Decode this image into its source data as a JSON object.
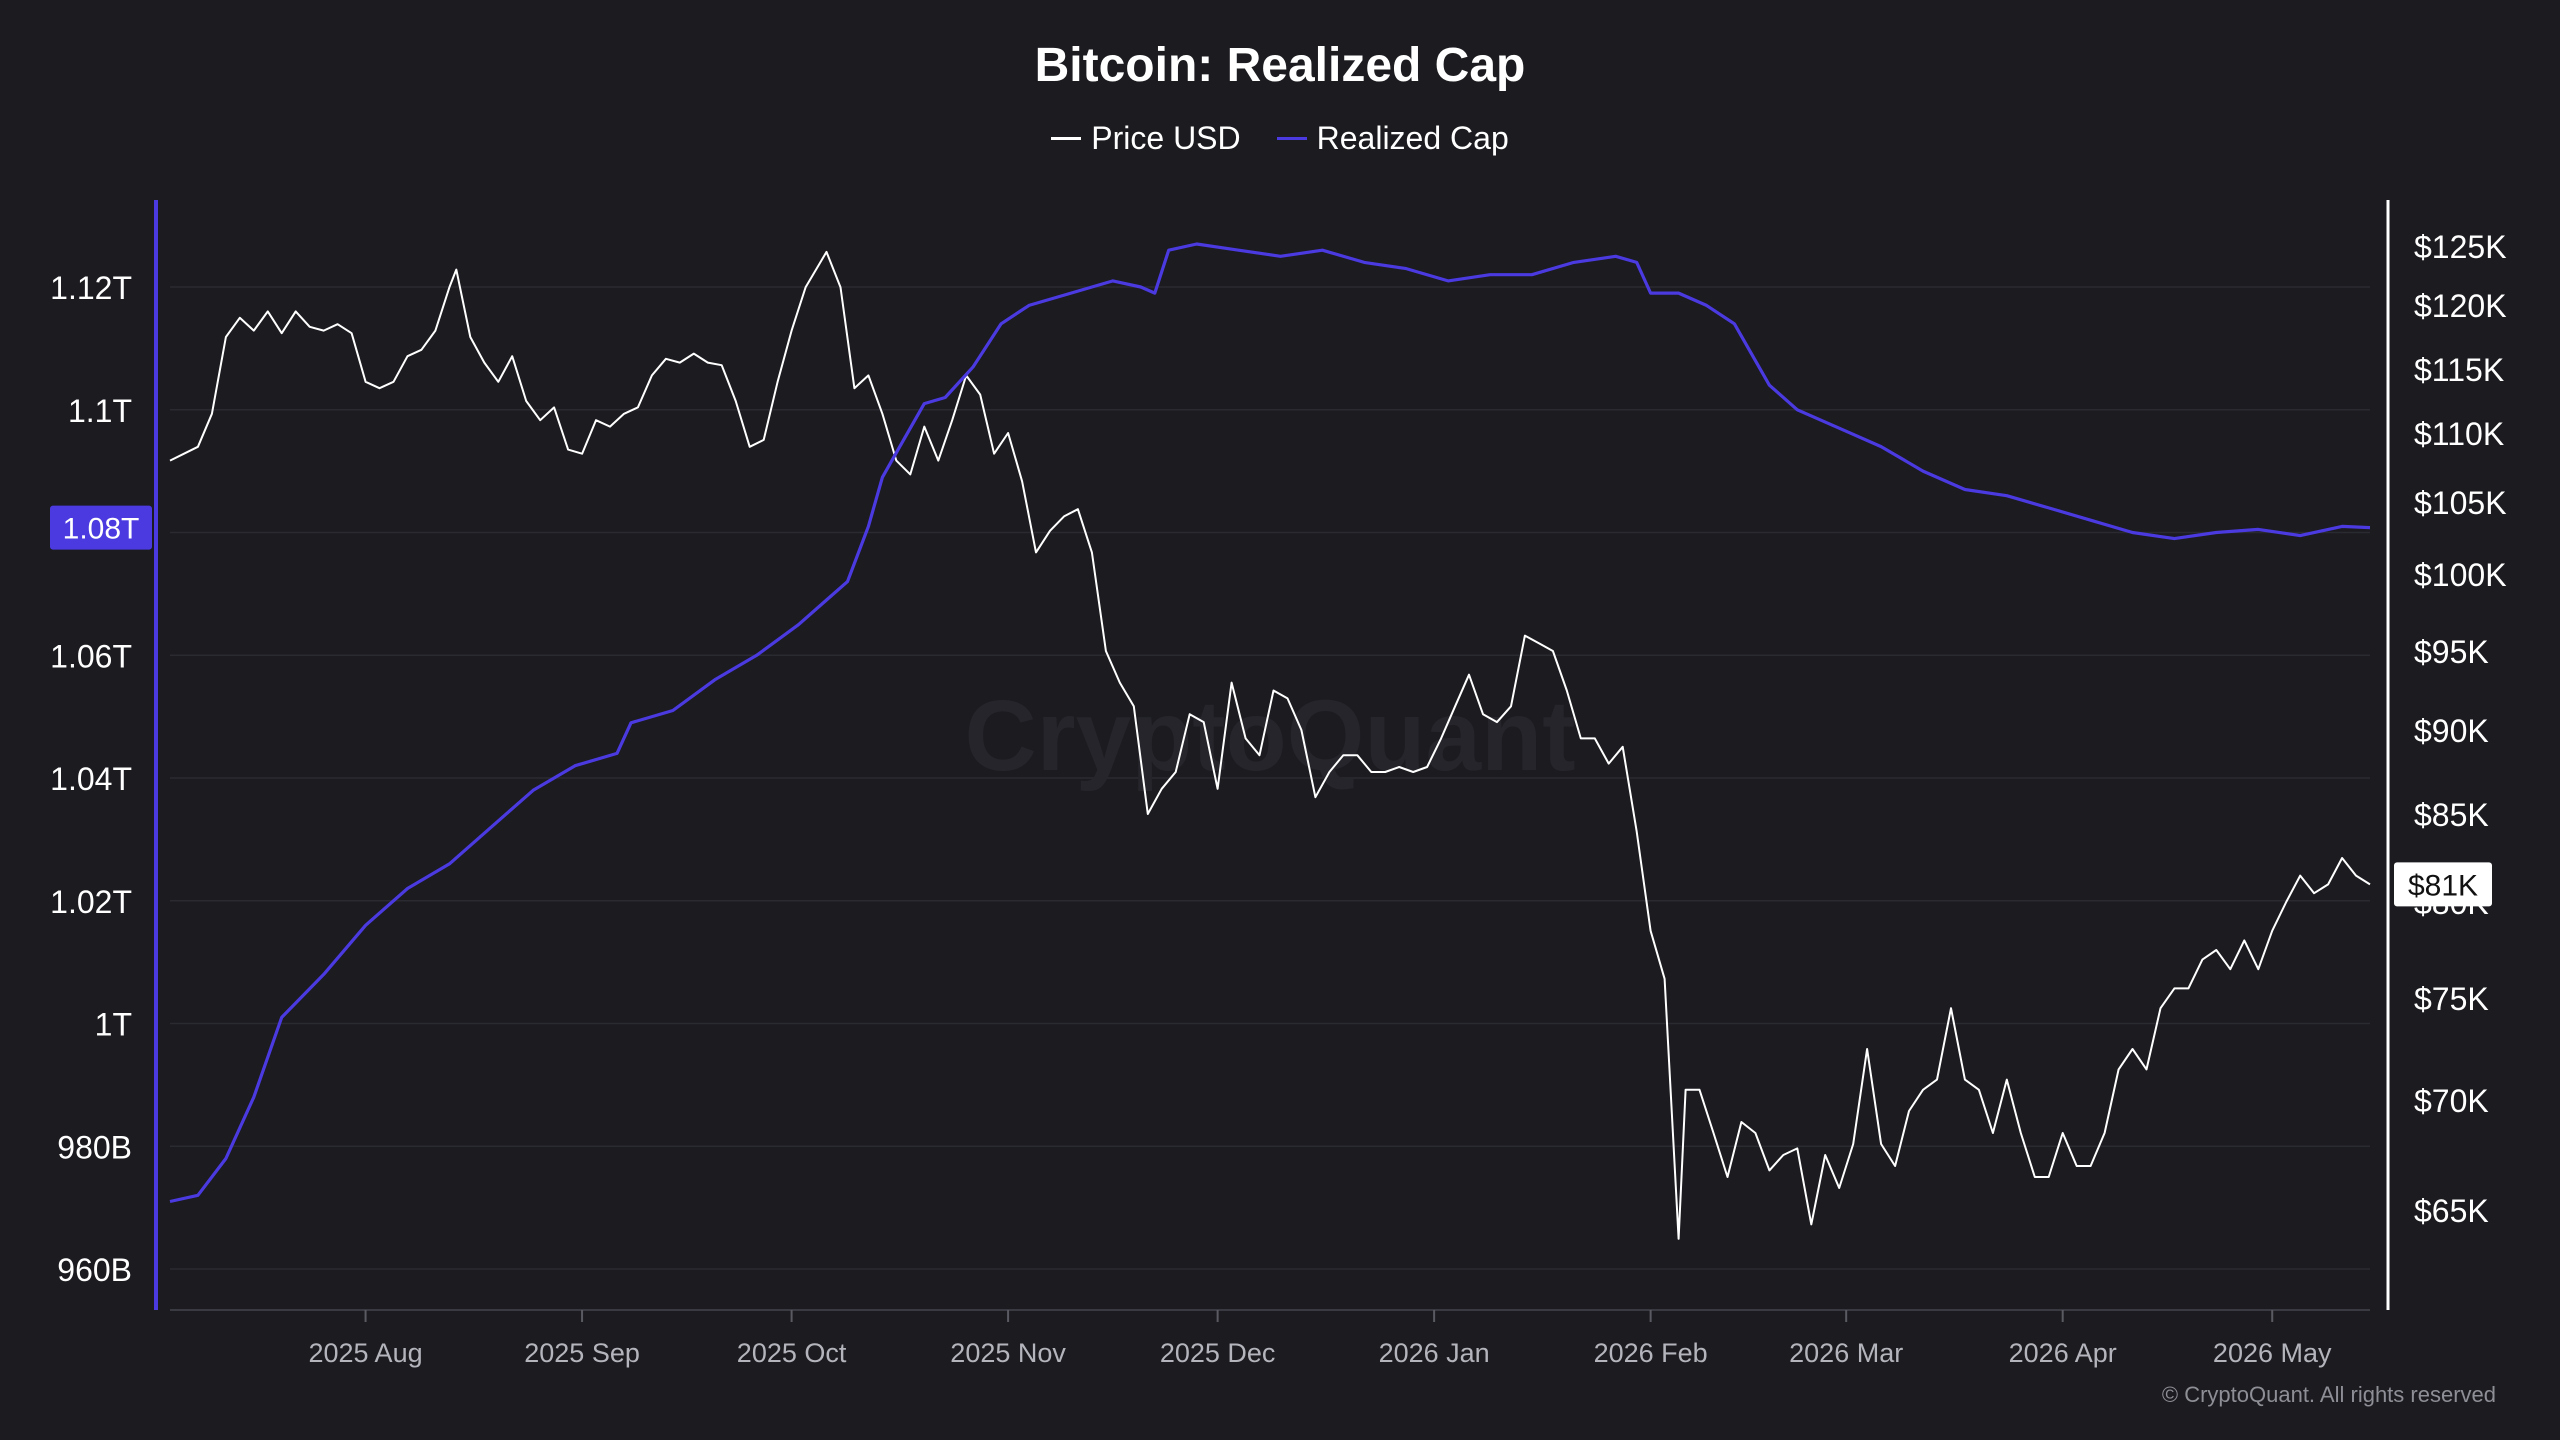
{
  "chart_data": {
    "type": "line",
    "title": "Bitcoin: Realized Cap",
    "watermark": "CryptoQuant",
    "copyright": "© CryptoQuant. All rights reserved",
    "legend_placement": "top-center",
    "grid": true,
    "x_ticks": [
      "2025 Aug",
      "2025 Sep",
      "2025 Oct",
      "2025 Nov",
      "2025 Dec",
      "2026 Jan",
      "2026 Feb",
      "2026 Mar",
      "2026 Apr",
      "2026 May"
    ],
    "x_range": [
      "2025-07-04",
      "2026-05-15"
    ],
    "y_left": {
      "ticks": [
        960,
        980,
        1000,
        1020,
        1040,
        1060,
        1080,
        1100,
        1120
      ],
      "tick_labels": [
        "960B",
        "980B",
        "1T",
        "1.02T",
        "1.04T",
        "1.06T",
        "1.08T",
        "1.1T",
        "1.12T"
      ],
      "range": [
        955,
        1133
      ],
      "current_label": "1.08T",
      "current_value": 1080.8
    },
    "y_right": {
      "ticks": [
        65,
        70,
        75,
        80,
        85,
        90,
        95,
        100,
        105,
        110,
        115,
        120,
        125
      ],
      "tick_labels": [
        "$65K",
        "$70K",
        "$75K",
        "$80K",
        "$85K",
        "$90K",
        "$95K",
        "$100K",
        "$105K",
        "$110K",
        "$115K",
        "$120K",
        "$125K"
      ],
      "current_label": "$81K",
      "current_value": 81
    },
    "series": [
      {
        "name": "Price USD",
        "color": "#ffffff",
        "axis": "right",
        "unit": "$K",
        "points": [
          [
            "2025-07-04",
            108.0
          ],
          [
            "2025-07-06",
            108.5
          ],
          [
            "2025-07-08",
            109.0
          ],
          [
            "2025-07-10",
            111.5
          ],
          [
            "2025-07-12",
            117.5
          ],
          [
            "2025-07-14",
            119.0
          ],
          [
            "2025-07-16",
            118.0
          ],
          [
            "2025-07-18",
            119.5
          ],
          [
            "2025-07-20",
            117.8
          ],
          [
            "2025-07-22",
            119.5
          ],
          [
            "2025-07-24",
            118.3
          ],
          [
            "2025-07-26",
            118.0
          ],
          [
            "2025-07-28",
            118.5
          ],
          [
            "2025-07-30",
            117.8
          ],
          [
            "2025-08-01",
            114.0
          ],
          [
            "2025-08-03",
            113.5
          ],
          [
            "2025-08-05",
            114.0
          ],
          [
            "2025-08-07",
            116.0
          ],
          [
            "2025-08-09",
            116.5
          ],
          [
            "2025-08-11",
            118.0
          ],
          [
            "2025-08-13",
            121.5
          ],
          [
            "2025-08-14",
            123.0
          ],
          [
            "2025-08-16",
            117.5
          ],
          [
            "2025-08-18",
            115.5
          ],
          [
            "2025-08-20",
            114.0
          ],
          [
            "2025-08-22",
            116.0
          ],
          [
            "2025-08-24",
            112.5
          ],
          [
            "2025-08-26",
            111.0
          ],
          [
            "2025-08-28",
            112.0
          ],
          [
            "2025-08-30",
            108.8
          ],
          [
            "2025-09-01",
            108.5
          ],
          [
            "2025-09-03",
            111.0
          ],
          [
            "2025-09-05",
            110.5
          ],
          [
            "2025-09-07",
            111.5
          ],
          [
            "2025-09-09",
            112.0
          ],
          [
            "2025-09-11",
            114.5
          ],
          [
            "2025-09-13",
            115.8
          ],
          [
            "2025-09-15",
            115.5
          ],
          [
            "2025-09-17",
            116.2
          ],
          [
            "2025-09-19",
            115.5
          ],
          [
            "2025-09-21",
            115.3
          ],
          [
            "2025-09-23",
            112.5
          ],
          [
            "2025-09-25",
            109.0
          ],
          [
            "2025-09-27",
            109.5
          ],
          [
            "2025-09-29",
            114.0
          ],
          [
            "2025-10-01",
            118.0
          ],
          [
            "2025-10-03",
            121.5
          ],
          [
            "2025-10-05",
            123.5
          ],
          [
            "2025-10-06",
            124.5
          ],
          [
            "2025-10-08",
            121.5
          ],
          [
            "2025-10-10",
            113.5
          ],
          [
            "2025-10-12",
            114.5
          ],
          [
            "2025-10-14",
            111.5
          ],
          [
            "2025-10-16",
            108.0
          ],
          [
            "2025-10-18",
            107.0
          ],
          [
            "2025-10-20",
            110.5
          ],
          [
            "2025-10-22",
            108.0
          ],
          [
            "2025-10-24",
            111.0
          ],
          [
            "2025-10-26",
            114.5
          ],
          [
            "2025-10-28",
            113.0
          ],
          [
            "2025-10-30",
            108.5
          ],
          [
            "2025-11-01",
            110.0
          ],
          [
            "2025-11-03",
            106.5
          ],
          [
            "2025-11-05",
            101.5
          ],
          [
            "2025-11-07",
            103.0
          ],
          [
            "2025-11-09",
            104.0
          ],
          [
            "2025-11-11",
            104.5
          ],
          [
            "2025-11-13",
            101.5
          ],
          [
            "2025-11-15",
            95.0
          ],
          [
            "2025-11-17",
            93.0
          ],
          [
            "2025-11-19",
            91.5
          ],
          [
            "2025-11-21",
            85.0
          ],
          [
            "2025-11-23",
            86.5
          ],
          [
            "2025-11-25",
            87.5
          ],
          [
            "2025-11-27",
            91.0
          ],
          [
            "2025-11-29",
            90.5
          ],
          [
            "2025-12-01",
            86.5
          ],
          [
            "2025-12-03",
            93.0
          ],
          [
            "2025-12-05",
            89.5
          ],
          [
            "2025-12-07",
            88.5
          ],
          [
            "2025-12-09",
            92.5
          ],
          [
            "2025-12-11",
            92.0
          ],
          [
            "2025-12-13",
            90.0
          ],
          [
            "2025-12-15",
            86.0
          ],
          [
            "2025-12-17",
            87.5
          ],
          [
            "2025-12-19",
            88.5
          ],
          [
            "2025-12-21",
            88.5
          ],
          [
            "2025-12-23",
            87.5
          ],
          [
            "2025-12-25",
            87.5
          ],
          [
            "2025-12-27",
            87.8
          ],
          [
            "2025-12-29",
            87.5
          ],
          [
            "2025-12-31",
            87.8
          ],
          [
            "2026-01-02",
            89.5
          ],
          [
            "2026-01-04",
            91.5
          ],
          [
            "2026-01-06",
            93.5
          ],
          [
            "2026-01-08",
            91.0
          ],
          [
            "2026-01-10",
            90.5
          ],
          [
            "2026-01-12",
            91.5
          ],
          [
            "2026-01-14",
            96.0
          ],
          [
            "2026-01-16",
            95.5
          ],
          [
            "2026-01-18",
            95.0
          ],
          [
            "2026-01-20",
            92.5
          ],
          [
            "2026-01-22",
            89.5
          ],
          [
            "2026-01-24",
            89.5
          ],
          [
            "2026-01-26",
            88.0
          ],
          [
            "2026-01-28",
            89.0
          ],
          [
            "2026-01-30",
            84.0
          ],
          [
            "2026-02-01",
            78.5
          ],
          [
            "2026-02-03",
            76.0
          ],
          [
            "2026-02-05",
            63.0
          ],
          [
            "2026-02-06",
            70.5
          ],
          [
            "2026-02-08",
            70.5
          ],
          [
            "2026-02-10",
            68.5
          ],
          [
            "2026-02-12",
            66.5
          ],
          [
            "2026-02-14",
            69.0
          ],
          [
            "2026-02-16",
            68.5
          ],
          [
            "2026-02-18",
            66.8
          ],
          [
            "2026-02-20",
            67.5
          ],
          [
            "2026-02-22",
            67.8
          ],
          [
            "2026-02-24",
            64.0
          ],
          [
            "2026-02-26",
            67.5
          ],
          [
            "2026-02-28",
            66.0
          ],
          [
            "2026-03-02",
            68.0
          ],
          [
            "2026-03-04",
            72.5
          ],
          [
            "2026-03-06",
            68.0
          ],
          [
            "2026-03-08",
            67.0
          ],
          [
            "2026-03-10",
            69.5
          ],
          [
            "2026-03-12",
            70.5
          ],
          [
            "2026-03-14",
            71.0
          ],
          [
            "2026-03-16",
            74.5
          ],
          [
            "2026-03-18",
            71.0
          ],
          [
            "2026-03-20",
            70.5
          ],
          [
            "2026-03-22",
            68.5
          ],
          [
            "2026-03-24",
            71.0
          ],
          [
            "2026-03-26",
            68.5
          ],
          [
            "2026-03-28",
            66.5
          ],
          [
            "2026-03-30",
            66.5
          ],
          [
            "2026-04-01",
            68.5
          ],
          [
            "2026-04-03",
            67.0
          ],
          [
            "2026-04-05",
            67.0
          ],
          [
            "2026-04-07",
            68.5
          ],
          [
            "2026-04-09",
            71.5
          ],
          [
            "2026-04-11",
            72.5
          ],
          [
            "2026-04-13",
            71.5
          ],
          [
            "2026-04-15",
            74.5
          ],
          [
            "2026-04-17",
            75.5
          ],
          [
            "2026-04-19",
            75.5
          ],
          [
            "2026-04-21",
            77.0
          ],
          [
            "2026-04-23",
            77.5
          ],
          [
            "2026-04-25",
            76.5
          ],
          [
            "2026-04-27",
            78.0
          ],
          [
            "2026-04-29",
            76.5
          ],
          [
            "2026-05-01",
            78.5
          ],
          [
            "2026-05-03",
            80.0
          ],
          [
            "2026-05-05",
            81.5
          ],
          [
            "2026-05-07",
            80.5
          ],
          [
            "2026-05-09",
            81.0
          ],
          [
            "2026-05-11",
            82.5
          ],
          [
            "2026-05-13",
            81.5
          ],
          [
            "2026-05-15",
            81.0
          ]
        ]
      },
      {
        "name": "Realized Cap",
        "color": "#4a3ae0",
        "axis": "left",
        "unit": "B",
        "points": [
          [
            "2025-07-04",
            971.0
          ],
          [
            "2025-07-08",
            972.0
          ],
          [
            "2025-07-12",
            978.0
          ],
          [
            "2025-07-16",
            988.0
          ],
          [
            "2025-07-20",
            1001.0
          ],
          [
            "2025-07-26",
            1008.0
          ],
          [
            "2025-08-01",
            1016.0
          ],
          [
            "2025-08-07",
            1022.0
          ],
          [
            "2025-08-13",
            1026.0
          ],
          [
            "2025-08-19",
            1032.0
          ],
          [
            "2025-08-25",
            1038.0
          ],
          [
            "2025-08-31",
            1042.0
          ],
          [
            "2025-09-06",
            1044.0
          ],
          [
            "2025-09-08",
            1049.0
          ],
          [
            "2025-09-14",
            1051.0
          ],
          [
            "2025-09-20",
            1056.0
          ],
          [
            "2025-09-26",
            1060.0
          ],
          [
            "2025-10-02",
            1065.0
          ],
          [
            "2025-10-06",
            1069.0
          ],
          [
            "2025-10-09",
            1072.0
          ],
          [
            "2025-10-12",
            1081.0
          ],
          [
            "2025-10-14",
            1089.0
          ],
          [
            "2025-10-17",
            1095.0
          ],
          [
            "2025-10-20",
            1101.0
          ],
          [
            "2025-10-23",
            1102.0
          ],
          [
            "2025-10-27",
            1107.0
          ],
          [
            "2025-10-31",
            1114.0
          ],
          [
            "2025-11-04",
            1117.0
          ],
          [
            "2025-11-10",
            1119.0
          ],
          [
            "2025-11-16",
            1121.0
          ],
          [
            "2025-11-20",
            1120.0
          ],
          [
            "2025-11-22",
            1119.0
          ],
          [
            "2025-11-24",
            1126.0
          ],
          [
            "2025-11-28",
            1127.0
          ],
          [
            "2025-12-04",
            1126.0
          ],
          [
            "2025-12-10",
            1125.0
          ],
          [
            "2025-12-16",
            1126.0
          ],
          [
            "2025-12-22",
            1124.0
          ],
          [
            "2025-12-28",
            1123.0
          ],
          [
            "2026-01-03",
            1121.0
          ],
          [
            "2026-01-09",
            1122.0
          ],
          [
            "2026-01-15",
            1122.0
          ],
          [
            "2026-01-21",
            1124.0
          ],
          [
            "2026-01-27",
            1125.0
          ],
          [
            "2026-01-30",
            1124.0
          ],
          [
            "2026-02-01",
            1119.0
          ],
          [
            "2026-02-05",
            1119.0
          ],
          [
            "2026-02-09",
            1117.0
          ],
          [
            "2026-02-13",
            1114.0
          ],
          [
            "2026-02-18",
            1104.0
          ],
          [
            "2026-02-22",
            1100.0
          ],
          [
            "2026-02-28",
            1097.0
          ],
          [
            "2026-03-06",
            1094.0
          ],
          [
            "2026-03-12",
            1090.0
          ],
          [
            "2026-03-18",
            1087.0
          ],
          [
            "2026-03-24",
            1086.0
          ],
          [
            "2026-03-30",
            1084.0
          ],
          [
            "2026-04-05",
            1082.0
          ],
          [
            "2026-04-11",
            1080.0
          ],
          [
            "2026-04-17",
            1079.0
          ],
          [
            "2026-04-23",
            1080.0
          ],
          [
            "2026-04-29",
            1080.5
          ],
          [
            "2026-05-05",
            1079.5
          ],
          [
            "2026-05-11",
            1081.0
          ],
          [
            "2026-05-15",
            1080.8
          ]
        ]
      }
    ]
  }
}
